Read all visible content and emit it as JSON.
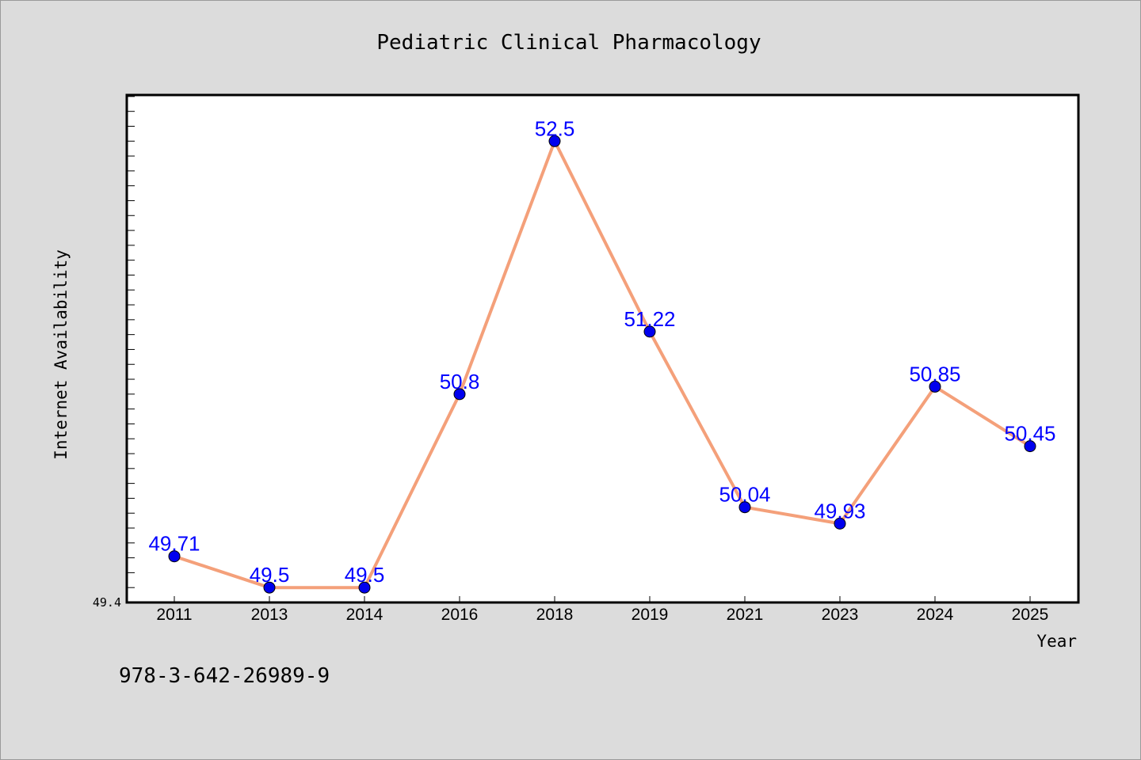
{
  "chart_data": {
    "type": "line",
    "title": "Pediatric Clinical Pharmacology",
    "xlabel": "Year",
    "ylabel": "Internet Availability",
    "categories": [
      "2011",
      "2013",
      "2014",
      "2016",
      "2018",
      "2019",
      "2021",
      "2023",
      "2024",
      "2025"
    ],
    "series": [
      {
        "values": [
          49.71,
          49.5,
          49.5,
          50.8,
          52.5,
          51.22,
          50.04,
          49.93,
          50.85,
          50.45
        ]
      }
    ],
    "data_labels": [
      "49.71",
      "49.5",
      "49.5",
      "50.8",
      "52.5",
      "51.22",
      "50.04",
      "49.93",
      "50.85",
      "50.45"
    ],
    "ylim": [
      49.4,
      52.81
    ],
    "y_tick_labels": [
      "49.4"
    ],
    "grid": false,
    "legend": "none",
    "colors": {
      "line": "#f4a07a",
      "marker": "#0000ee",
      "label": "#0000ff",
      "background": "#dcdcdc",
      "plot_bg": "#ffffff"
    }
  },
  "footer": {
    "isbn": "978-3-642-26989-9"
  }
}
